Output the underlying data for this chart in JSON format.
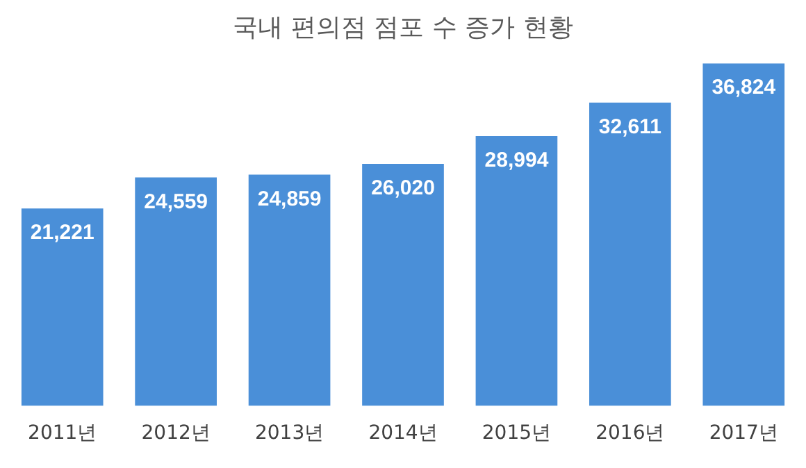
{
  "chart_data": {
    "type": "bar",
    "title": "국내 편의점 점포 수 증가 현황",
    "categories": [
      "2011년",
      "2012년",
      "2013년",
      "2014년",
      "2015년",
      "2016년",
      "2017년"
    ],
    "values": [
      21221,
      24559,
      24859,
      26020,
      28994,
      32611,
      36824
    ],
    "value_labels": [
      "21,221",
      "24,559",
      "24,859",
      "26,020",
      "28,994",
      "32,611",
      "36,824"
    ],
    "color": "#4a8fd8",
    "grid": false,
    "legend": false,
    "tick_labels": "x"
  }
}
